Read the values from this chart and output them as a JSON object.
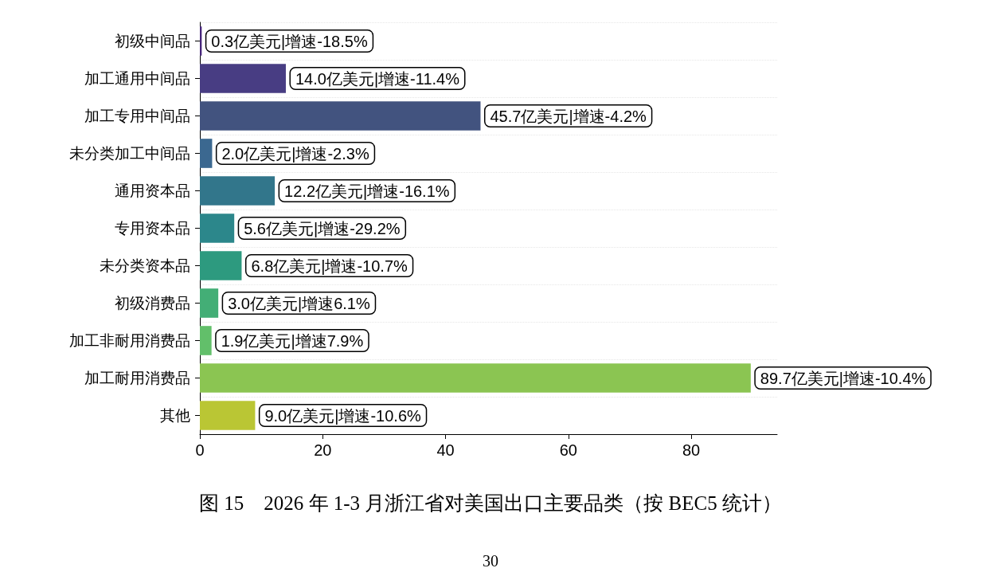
{
  "chart_data": {
    "type": "bar",
    "orientation": "horizontal",
    "title": "图 15　2026 年 1-3 月浙江省对美国出口主要品类（按 BEC5 统计）",
    "categories": [
      "初级中间品",
      "加工通用中间品",
      "加工专用中间品",
      "未分类加工中间品",
      "通用资本品",
      "专用资本品",
      "未分类资本品",
      "初级消费品",
      "加工非耐用消费品",
      "加工耐用消费品",
      "其他"
    ],
    "values": [
      0.3,
      14.0,
      45.7,
      2.0,
      12.2,
      5.6,
      6.8,
      3.0,
      1.9,
      89.7,
      9.0
    ],
    "colors": [
      "#46247a",
      "#483d83",
      "#42537f",
      "#3b6890",
      "#32768b",
      "#2c878b",
      "#2d9a7f",
      "#43ae76",
      "#62bf6a",
      "#8bc552",
      "#bac634"
    ],
    "value_labels": [
      "0.3亿美元|增速-18.5%",
      "14.0亿美元|增速-11.4%",
      "45.7亿美元|增速-4.2%",
      "2.0亿美元|增速-2.3%",
      "12.2亿美元|增速-16.1%",
      "5.6亿美元|增速-29.2%",
      "6.8亿美元|增速-10.7%",
      "3.0亿美元|增速6.1%",
      "1.9亿美元|增速7.9%",
      "89.7亿美元|增速-10.4%",
      "9.0亿美元|增速-10.6%"
    ],
    "xlim": [
      0,
      94
    ],
    "xticks": [
      0,
      20,
      40,
      60,
      80
    ],
    "grid": "y",
    "annotations": [
      "30"
    ]
  }
}
